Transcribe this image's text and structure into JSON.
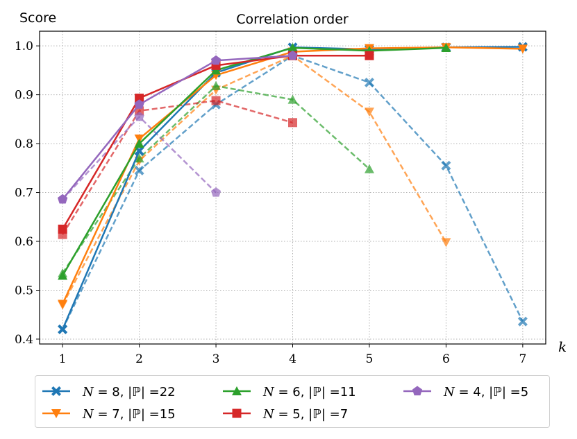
{
  "chart_data": {
    "type": "line",
    "title": "Correlation order",
    "ylabel": "Score",
    "xlabel": "k",
    "x": [
      1,
      2,
      3,
      4,
      5,
      6,
      7
    ],
    "xlim": [
      0.7,
      7.3
    ],
    "ylim": [
      0.39,
      1.03
    ],
    "xticks": [
      "1",
      "2",
      "3",
      "4",
      "5",
      "6",
      "7"
    ],
    "yticks": [
      "0.4",
      "0.5",
      "0.6",
      "0.7",
      "0.8",
      "0.9",
      "1.0"
    ],
    "grid": true,
    "legend_position": "bottom",
    "series": [
      {
        "name": "N = 8, |ℙ| =22",
        "color": "#1f77b4",
        "marker": "x-filled",
        "style": "solid",
        "values": [
          0.42,
          0.785,
          0.945,
          0.997,
          0.993,
          0.997,
          0.998
        ]
      },
      {
        "name": "N = 7, |ℙ| =15",
        "color": "#ff7f0e",
        "marker": "triangle-down",
        "style": "solid",
        "values": [
          0.472,
          0.81,
          0.94,
          0.988,
          0.995,
          0.997,
          0.994
        ]
      },
      {
        "name": "N = 6, |ℙ| =11",
        "color": "#2ca02c",
        "marker": "triangle-up",
        "style": "solid",
        "values": [
          0.53,
          0.8,
          0.95,
          0.996,
          0.99,
          0.996,
          null
        ]
      },
      {
        "name": "N = 5, |ℙ| =7",
        "color": "#d62728",
        "marker": "square",
        "style": "solid",
        "values": [
          0.625,
          0.893,
          0.96,
          0.98,
          0.98,
          null,
          null
        ]
      },
      {
        "name": "N = 4, |ℙ| =5",
        "color": "#9467bd",
        "marker": "pentagon",
        "style": "solid",
        "values": [
          0.686,
          0.88,
          0.97,
          0.98,
          null,
          null,
          null
        ]
      },
      {
        "color": "#1f77b4",
        "marker": "x-filled",
        "style": "dashed",
        "values": [
          0.42,
          0.745,
          0.88,
          0.98,
          0.925,
          0.755,
          0.436
        ]
      },
      {
        "color": "#ff7f0e",
        "marker": "triangle-down",
        "style": "dashed",
        "values": [
          0.47,
          0.765,
          0.91,
          0.98,
          0.865,
          0.598,
          null
        ]
      },
      {
        "color": "#2ca02c",
        "marker": "triangle-up",
        "style": "dashed",
        "values": [
          0.535,
          0.77,
          0.918,
          0.89,
          0.748,
          null,
          null
        ]
      },
      {
        "color": "#d62728",
        "marker": "square",
        "style": "dashed",
        "values": [
          0.614,
          0.867,
          0.888,
          0.843,
          null,
          null,
          null
        ]
      },
      {
        "color": "#9467bd",
        "marker": "pentagon",
        "style": "dashed",
        "values": [
          0.686,
          0.855,
          0.7,
          null,
          null,
          null,
          null
        ]
      }
    ],
    "legend": [
      {
        "italic": "N",
        "text": " = 8, |ℙ| =22"
      },
      {
        "italic": "N",
        "text": " = 7, |ℙ| =15"
      },
      {
        "italic": "N",
        "text": " = 6, |ℙ| =11"
      },
      {
        "italic": "N",
        "text": " = 5, |ℙ| =7"
      },
      {
        "italic": "N",
        "text": " = 4, |ℙ| =5"
      }
    ]
  }
}
